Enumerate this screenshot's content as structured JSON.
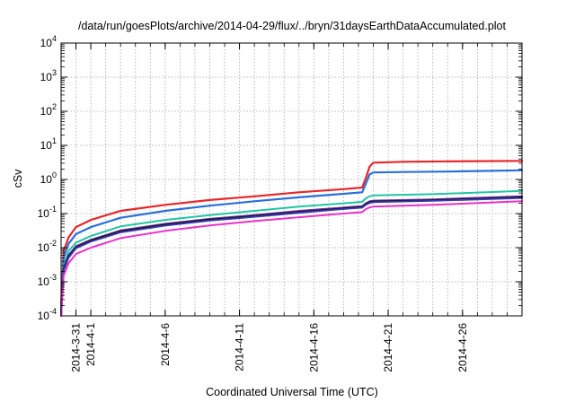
{
  "chart_data": {
    "type": "line",
    "title": "/data/run/goesPlots/archive/2014-04-29/flux/../bryn/31daysEarthDataAccumulated.plot",
    "xlabel": "Coordinated Universal Time (UTC)",
    "ylabel": "cSv",
    "xlim": [
      "2014-03-30",
      "2014-04-30"
    ],
    "ylim": [
      0.0001,
      10000
    ],
    "yscale": "log",
    "grid": true,
    "x_ticks": [
      "2014-3-31",
      "2014-4-1",
      "2014-4-6",
      "2014-4-11",
      "2014-4-16",
      "2014-4-21",
      "2014-4-26"
    ],
    "y_ticks": [
      {
        "base": "10",
        "exp": "-4"
      },
      {
        "base": "10",
        "exp": "-3"
      },
      {
        "base": "10",
        "exp": "-2"
      },
      {
        "base": "10",
        "exp": "-1"
      },
      {
        "base": "10",
        "exp": "0"
      },
      {
        "base": "10",
        "exp": "1"
      },
      {
        "base": "10",
        "exp": "2"
      },
      {
        "base": "10",
        "exp": "3"
      },
      {
        "base": "10",
        "exp": "4"
      }
    ],
    "series": [
      {
        "color": "#e8262b",
        "width": 2.2,
        "points": [
          [
            "2014-03-30T00:00",
            0.0002
          ],
          [
            "2014-03-30T04:00",
            0.008
          ],
          [
            "2014-03-30T12:00",
            0.02
          ],
          [
            "2014-03-31",
            0.04
          ],
          [
            "2014-04-01",
            0.065
          ],
          [
            "2014-04-03",
            0.12
          ],
          [
            "2014-04-06",
            0.18
          ],
          [
            "2014-04-09",
            0.25
          ],
          [
            "2014-04-12",
            0.32
          ],
          [
            "2014-04-15",
            0.42
          ],
          [
            "2014-04-18",
            0.52
          ],
          [
            "2014-04-19T06:00",
            0.58
          ],
          [
            "2014-04-19T12:00",
            1.1
          ],
          [
            "2014-04-19T18:00",
            2.4
          ],
          [
            "2014-04-20",
            3.1
          ],
          [
            "2014-04-22",
            3.3
          ],
          [
            "2014-04-25",
            3.4
          ],
          [
            "2014-04-30",
            3.5
          ]
        ]
      },
      {
        "color": "#2a6fd8",
        "width": 2.2,
        "points": [
          [
            "2014-03-30T00:00",
            0.00015
          ],
          [
            "2014-03-30T04:00",
            0.005
          ],
          [
            "2014-03-30T12:00",
            0.013
          ],
          [
            "2014-03-31",
            0.025
          ],
          [
            "2014-04-01",
            0.04
          ],
          [
            "2014-04-03",
            0.075
          ],
          [
            "2014-04-06",
            0.12
          ],
          [
            "2014-04-09",
            0.17
          ],
          [
            "2014-04-12",
            0.23
          ],
          [
            "2014-04-15",
            0.3
          ],
          [
            "2014-04-18",
            0.38
          ],
          [
            "2014-04-19T06:00",
            0.42
          ],
          [
            "2014-04-19T12:00",
            0.75
          ],
          [
            "2014-04-19T18:00",
            1.4
          ],
          [
            "2014-04-20",
            1.6
          ],
          [
            "2014-04-22",
            1.65
          ],
          [
            "2014-04-25",
            1.7
          ],
          [
            "2014-04-30",
            1.85
          ]
        ]
      },
      {
        "color": "#22c4a4",
        "width": 2.0,
        "points": [
          [
            "2014-03-30T00:00",
            0.0001
          ],
          [
            "2014-03-30T04:00",
            0.003
          ],
          [
            "2014-03-30T12:00",
            0.008
          ],
          [
            "2014-03-31",
            0.014
          ],
          [
            "2014-04-01",
            0.022
          ],
          [
            "2014-04-03",
            0.042
          ],
          [
            "2014-04-06",
            0.065
          ],
          [
            "2014-04-09",
            0.09
          ],
          [
            "2014-04-12",
            0.12
          ],
          [
            "2014-04-15",
            0.16
          ],
          [
            "2014-04-18",
            0.2
          ],
          [
            "2014-04-19T06:00",
            0.22
          ],
          [
            "2014-04-19T12:00",
            0.28
          ],
          [
            "2014-04-19T18:00",
            0.32
          ],
          [
            "2014-04-20",
            0.34
          ],
          [
            "2014-04-24",
            0.37
          ],
          [
            "2014-04-30",
            0.46
          ]
        ]
      },
      {
        "color": "#6a2fa0",
        "width": 2.0,
        "points": [
          [
            "2014-03-30T00:00",
            0.0001
          ],
          [
            "2014-03-30T04:00",
            0.0025
          ],
          [
            "2014-03-30T12:00",
            0.006
          ],
          [
            "2014-03-31",
            0.011
          ],
          [
            "2014-04-01",
            0.017
          ],
          [
            "2014-04-03",
            0.032
          ],
          [
            "2014-04-06",
            0.05
          ],
          [
            "2014-04-09",
            0.07
          ],
          [
            "2014-04-12",
            0.09
          ],
          [
            "2014-04-15",
            0.12
          ],
          [
            "2014-04-18",
            0.15
          ],
          [
            "2014-04-19T06:00",
            0.165
          ],
          [
            "2014-04-19T12:00",
            0.2
          ],
          [
            "2014-04-19T18:00",
            0.23
          ],
          [
            "2014-04-20",
            0.24
          ],
          [
            "2014-04-24",
            0.26
          ],
          [
            "2014-04-30",
            0.32
          ]
        ]
      },
      {
        "color": "#151515",
        "width": 2.0,
        "points": [
          [
            "2014-03-30T00:00",
            0.0001
          ],
          [
            "2014-03-30T04:00",
            0.0023
          ],
          [
            "2014-03-30T12:00",
            0.0055
          ],
          [
            "2014-03-31",
            0.01
          ],
          [
            "2014-04-01",
            0.016
          ],
          [
            "2014-04-03",
            0.03
          ],
          [
            "2014-04-06",
            0.047
          ],
          [
            "2014-04-09",
            0.066
          ],
          [
            "2014-04-12",
            0.085
          ],
          [
            "2014-04-15",
            0.11
          ],
          [
            "2014-04-18",
            0.14
          ],
          [
            "2014-04-19T06:00",
            0.155
          ],
          [
            "2014-04-19T12:00",
            0.19
          ],
          [
            "2014-04-19T18:00",
            0.215
          ],
          [
            "2014-04-20",
            0.225
          ],
          [
            "2014-04-24",
            0.245
          ],
          [
            "2014-04-30",
            0.3
          ]
        ]
      },
      {
        "color": "#3a3ab8",
        "width": 1.8,
        "points": [
          [
            "2014-03-30T00:00",
            0.0001
          ],
          [
            "2014-03-30T04:00",
            0.0021
          ],
          [
            "2014-03-30T12:00",
            0.005
          ],
          [
            "2014-03-31",
            0.0095
          ],
          [
            "2014-04-01",
            0.015
          ],
          [
            "2014-04-03",
            0.028
          ],
          [
            "2014-04-06",
            0.044
          ],
          [
            "2014-04-09",
            0.062
          ],
          [
            "2014-04-12",
            0.08
          ],
          [
            "2014-04-15",
            0.105
          ],
          [
            "2014-04-18",
            0.135
          ],
          [
            "2014-04-19T06:00",
            0.148
          ],
          [
            "2014-04-19T12:00",
            0.18
          ],
          [
            "2014-04-19T18:00",
            0.205
          ],
          [
            "2014-04-20",
            0.215
          ],
          [
            "2014-04-24",
            0.235
          ],
          [
            "2014-04-30",
            0.285
          ]
        ]
      },
      {
        "color": "#e832c8",
        "width": 2.0,
        "points": [
          [
            "2014-03-30T00:00",
            0.0001
          ],
          [
            "2014-03-30T04:00",
            0.0015
          ],
          [
            "2014-03-30T12:00",
            0.0035
          ],
          [
            "2014-03-31",
            0.0065
          ],
          [
            "2014-04-01",
            0.01
          ],
          [
            "2014-04-03",
            0.019
          ],
          [
            "2014-04-06",
            0.031
          ],
          [
            "2014-04-09",
            0.045
          ],
          [
            "2014-04-12",
            0.06
          ],
          [
            "2014-04-15",
            0.078
          ],
          [
            "2014-04-18",
            0.1
          ],
          [
            "2014-04-19T06:00",
            0.11
          ],
          [
            "2014-04-19T12:00",
            0.135
          ],
          [
            "2014-04-19T18:00",
            0.152
          ],
          [
            "2014-04-20",
            0.16
          ],
          [
            "2014-04-24",
            0.18
          ],
          [
            "2014-04-30",
            0.23
          ]
        ]
      }
    ]
  }
}
